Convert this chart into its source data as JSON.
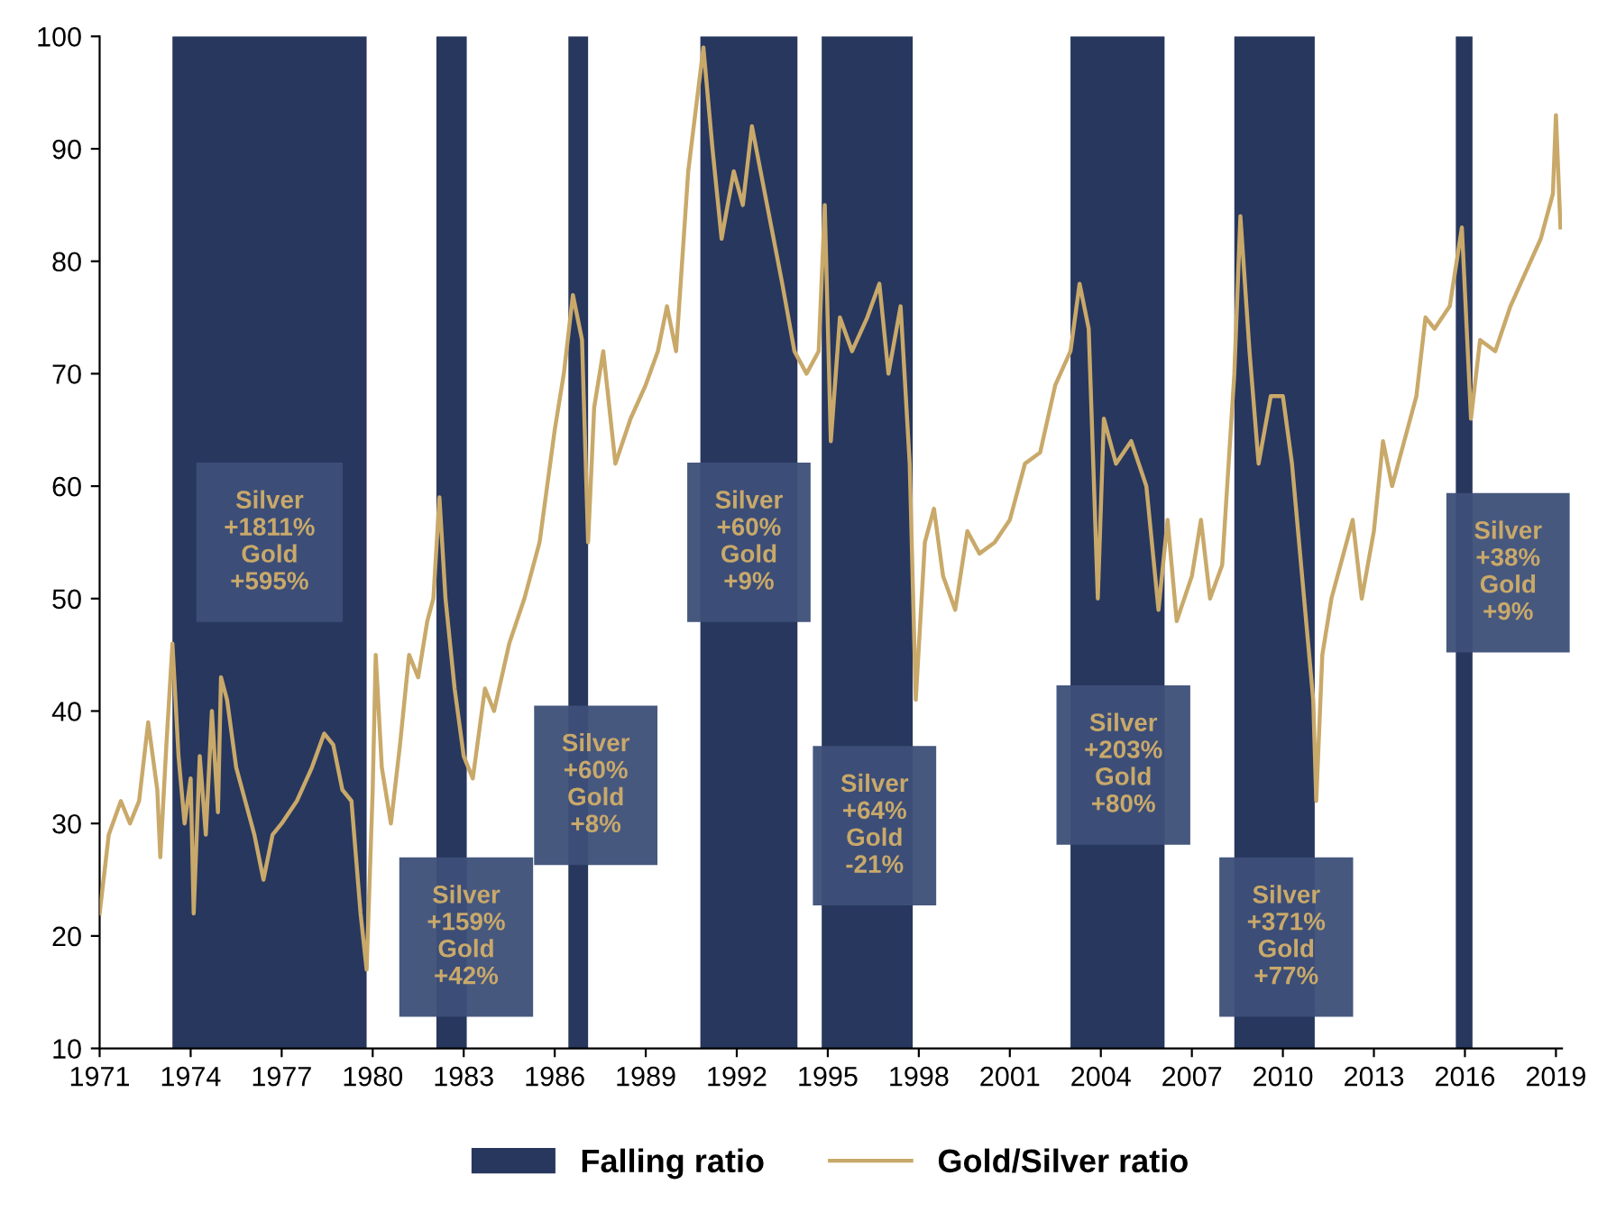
{
  "chart_data": {
    "type": "line",
    "xlim": [
      1971,
      2019.2
    ],
    "ylim": [
      10,
      100
    ],
    "xticks": [
      1971,
      1974,
      1977,
      1980,
      1983,
      1986,
      1989,
      1992,
      1995,
      1998,
      2001,
      2004,
      2007,
      2010,
      2013,
      2016,
      2019
    ],
    "yticks": [
      10,
      20,
      30,
      40,
      50,
      60,
      70,
      80,
      90,
      100
    ],
    "grid": false,
    "legend": "bottom",
    "marker": "none",
    "line_style": "solid",
    "bands": [
      {
        "axis": "x",
        "from": 1973.4,
        "to": 1979.8,
        "color": "#27375e",
        "label": "Falling ratio"
      },
      {
        "axis": "x",
        "from": 1982.1,
        "to": 1983.1,
        "color": "#27375e"
      },
      {
        "axis": "x",
        "from": 1986.45,
        "to": 1987.1,
        "color": "#27375e"
      },
      {
        "axis": "x",
        "from": 1990.8,
        "to": 1994.0,
        "color": "#27375e"
      },
      {
        "axis": "x",
        "from": 1994.8,
        "to": 1997.8,
        "color": "#27375e"
      },
      {
        "axis": "x",
        "from": 2003.0,
        "to": 2006.1,
        "color": "#27375e"
      },
      {
        "axis": "x",
        "from": 2008.4,
        "to": 2011.05,
        "color": "#27375e"
      },
      {
        "axis": "x",
        "from": 2015.7,
        "to": 2016.25,
        "color": "#27375e"
      }
    ],
    "series": [
      {
        "name": "Gold/Silver ratio",
        "color": "#c9a96a",
        "x": [
          1971.0,
          1971.3,
          1971.7,
          1972.0,
          1972.3,
          1972.6,
          1972.9,
          1973.0,
          1973.2,
          1973.4,
          1973.6,
          1973.8,
          1974.0,
          1974.1,
          1974.3,
          1974.5,
          1974.7,
          1974.9,
          1975.0,
          1975.2,
          1975.5,
          1975.8,
          1976.1,
          1976.4,
          1976.7,
          1977.0,
          1977.5,
          1978.0,
          1978.4,
          1978.7,
          1979.0,
          1979.3,
          1979.6,
          1979.8,
          1980.0,
          1980.1,
          1980.3,
          1980.6,
          1980.9,
          1981.2,
          1981.5,
          1981.8,
          1982.0,
          1982.2,
          1982.4,
          1982.7,
          1983.0,
          1983.3,
          1983.7,
          1984.0,
          1984.5,
          1985.0,
          1985.5,
          1986.0,
          1986.3,
          1986.6,
          1986.9,
          1987.1,
          1987.3,
          1987.6,
          1988.0,
          1988.5,
          1989.0,
          1989.4,
          1989.7,
          1990.0,
          1990.4,
          1990.9,
          1991.2,
          1991.5,
          1991.9,
          1992.2,
          1992.5,
          1993.0,
          1993.5,
          1993.9,
          1994.3,
          1994.7,
          1994.9,
          1995.1,
          1995.4,
          1995.8,
          1996.3,
          1996.7,
          1997.0,
          1997.4,
          1997.7,
          1997.9,
          1998.2,
          1998.5,
          1998.8,
          1999.2,
          1999.6,
          2000.0,
          2000.5,
          2001.0,
          2001.5,
          2002.0,
          2002.5,
          2003.0,
          2003.3,
          2003.6,
          2003.9,
          2004.1,
          2004.5,
          2005.0,
          2005.5,
          2005.9,
          2006.2,
          2006.5,
          2007.0,
          2007.3,
          2007.6,
          2008.0,
          2008.4,
          2008.6,
          2008.9,
          2009.2,
          2009.6,
          2010.0,
          2010.3,
          2010.7,
          2011.0,
          2011.1,
          2011.3,
          2011.6,
          2012.0,
          2012.3,
          2012.6,
          2013.0,
          2013.3,
          2013.6,
          2014.0,
          2014.4,
          2014.7,
          2015.0,
          2015.5,
          2015.9,
          2016.2,
          2016.5,
          2017.0,
          2017.5,
          2018.0,
          2018.5,
          2018.9,
          2019.0,
          2019.15
        ],
        "values": [
          22,
          29,
          32,
          30,
          32,
          39,
          33,
          27,
          37,
          46,
          36,
          30,
          34,
          22,
          36,
          29,
          40,
          31,
          43,
          41,
          35,
          32,
          29,
          25,
          29,
          30,
          32,
          35,
          38,
          37,
          33,
          32,
          22,
          17,
          33,
          45,
          35,
          30,
          37,
          45,
          43,
          48,
          50,
          59,
          50,
          42,
          36,
          34,
          42,
          40,
          46,
          50,
          55,
          65,
          70,
          77,
          73,
          55,
          67,
          72,
          62,
          66,
          69,
          72,
          76,
          72,
          88,
          99,
          90,
          82,
          88,
          85,
          92,
          85,
          78,
          72,
          70,
          72,
          85,
          64,
          75,
          72,
          75,
          78,
          70,
          76,
          62,
          41,
          55,
          58,
          52,
          49,
          56,
          54,
          55,
          57,
          62,
          63,
          69,
          72,
          78,
          74,
          50,
          66,
          62,
          64,
          60,
          49,
          57,
          48,
          52,
          57,
          50,
          53,
          70,
          84,
          72,
          62,
          68,
          68,
          62,
          50,
          41,
          32,
          45,
          50,
          54,
          57,
          50,
          56,
          64,
          60,
          64,
          68,
          75,
          74,
          76,
          83,
          66,
          73,
          72,
          76,
          79,
          82,
          86,
          93,
          83
        ]
      }
    ],
    "annotations": [
      "Silver\n+1811%\nGold\n+595%",
      "Silver\n+159%\nGold\n+42%",
      "Silver\n+60%\nGold\n+8%",
      "Silver\n+60%\nGold\n+9%",
      "Silver\n+64%\nGold\n-21%",
      "Silver\n+203%\nGold\n+80%",
      "Silver\n+371%\nGold\n+77%",
      "Silver\n+38%\nGold\n+9%"
    ]
  }
}
